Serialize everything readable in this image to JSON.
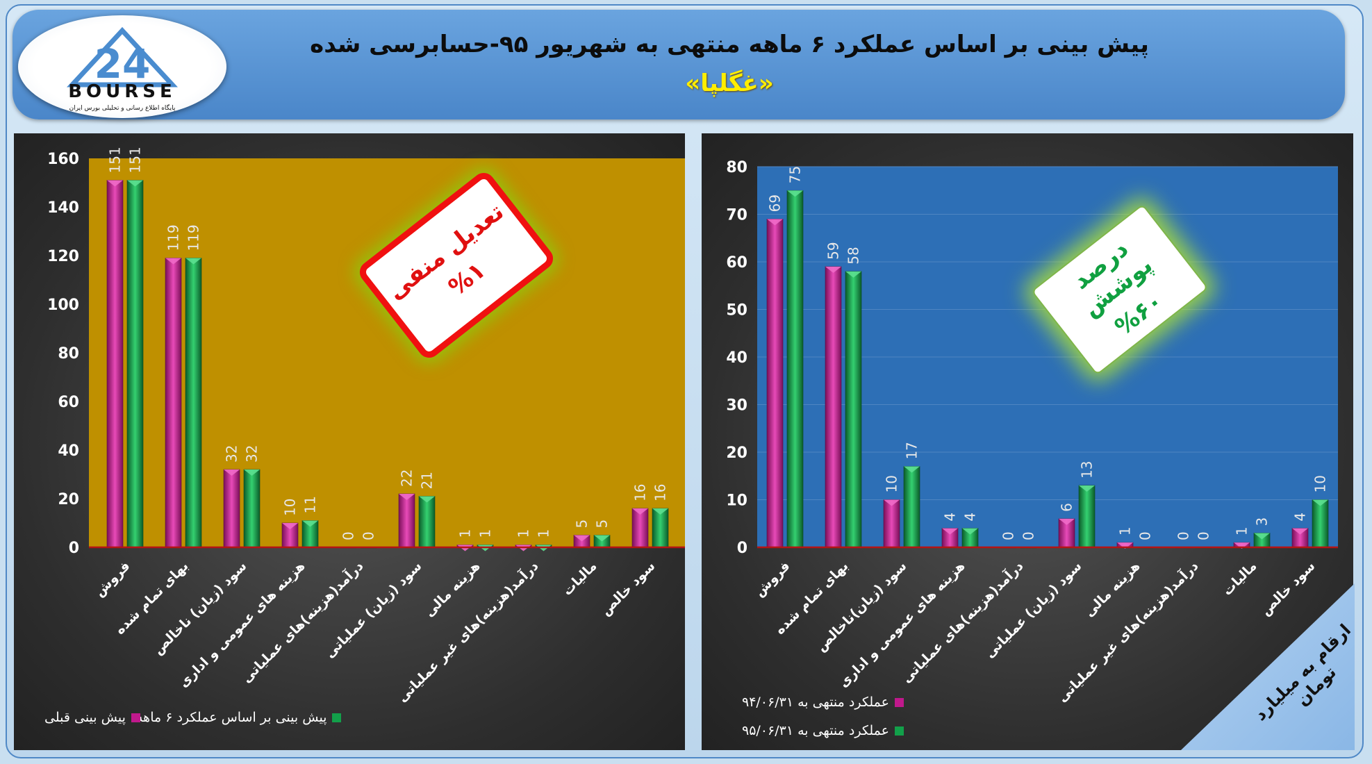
{
  "header": {
    "title": "پیش بینی بر اساس عملکرد ۶ ماهه منتهی به شهریور ۹۵-حسابرسی شده",
    "subtitle": "«غگلپا»"
  },
  "logo": {
    "number": "24",
    "brand": "BOURSE",
    "tagline": "پایگاه اطلاع رسانی و تحلیلی بورس ایران"
  },
  "stamps": {
    "left": {
      "line1": "تعدیل منفی",
      "line2": "%۱"
    },
    "right": {
      "line1": "درصد پوشش",
      "line2": "%۶۰"
    }
  },
  "corner_note": "ارقام به میلیارد تومان",
  "colors": {
    "magenta": "#c0198c",
    "green": "#129a46",
    "left_plot_bg": "#bf9000",
    "right_plot_bg": "#2d6fb6"
  },
  "chart_data": [
    {
      "type": "bar",
      "categories": [
        "فروش",
        "بهای تمام شده",
        "سود (زیان) ناخالص",
        "هزینه های عمومی و اداری",
        "درآمد(هزینه)های عملیاتی",
        "سود (زیان) عملیاتی",
        "هزینه مالی",
        "درآمد(هزینه)های غیر عملیاتی",
        "مالیات",
        "سود خالص"
      ],
      "series": [
        {
          "name": "پیش بینی قبلی",
          "values": [
            151,
            119,
            32,
            10,
            0,
            22,
            1,
            1,
            5,
            16
          ]
        },
        {
          "name": "پیش بینی بر اساس عملکرد ۶ ماهه",
          "values": [
            151,
            119,
            32,
            11,
            0,
            21,
            1,
            1,
            5,
            16
          ]
        }
      ],
      "ylim": [
        0,
        160
      ],
      "yticks": [
        0,
        20,
        40,
        60,
        80,
        100,
        120,
        140,
        160
      ],
      "legend": "bottom"
    },
    {
      "type": "bar",
      "categories": [
        "فروش",
        "بهای تمام شده",
        "سود (زیان)ناخالص",
        "هزینه های عمومی و اداری",
        "درآمد(هزینه)های عملیاتی",
        "سود (زیان) عملیاتی",
        "هزینه مالی",
        "درآمد(هزینه)های غیر عملیاتی",
        "مالیات",
        "سود خالص"
      ],
      "series": [
        {
          "name": "عملکرد منتهی به ۹۴/۰۶/۳۱",
          "values": [
            69,
            59,
            10,
            4,
            0,
            6,
            1,
            0,
            1,
            4
          ]
        },
        {
          "name": "عملکرد منتهی به ۹۵/۰۶/۳۱",
          "values": [
            75,
            58,
            17,
            4,
            0,
            13,
            0,
            0,
            3,
            10
          ]
        }
      ],
      "ylim": [
        0,
        80
      ],
      "yticks": [
        0,
        10,
        20,
        30,
        40,
        50,
        60,
        70,
        80
      ],
      "legend": "bottom"
    }
  ]
}
